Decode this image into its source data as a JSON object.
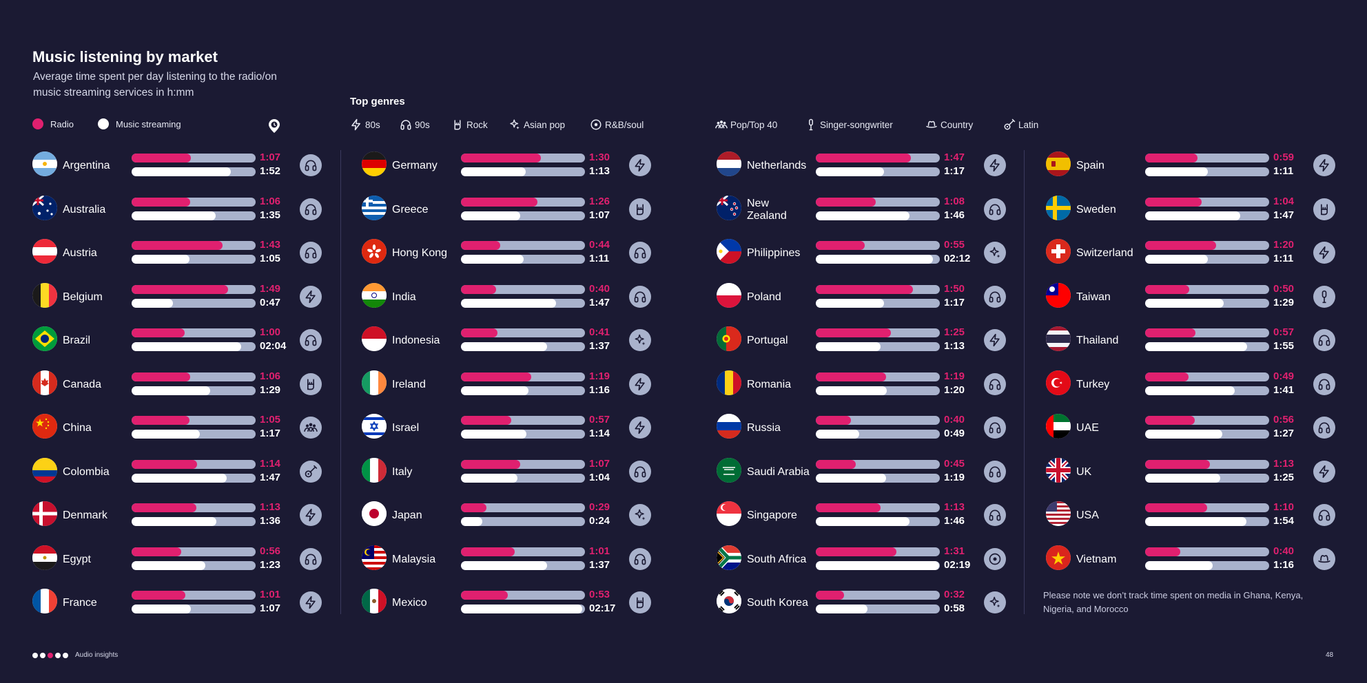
{
  "header": {
    "title": "Music listening by market",
    "subtitle": "Average time spent per day listening to the radio/on music streaming services in h:mm"
  },
  "legend": {
    "radio": "Radio",
    "streaming": "Music streaming"
  },
  "top_genres": {
    "title": "Top genres",
    "items": [
      {
        "key": "80s",
        "label": "80s",
        "icon": "bolt-icon"
      },
      {
        "key": "90s",
        "label": "90s",
        "icon": "headphones-icon"
      },
      {
        "key": "rock",
        "label": "Rock",
        "icon": "rock-hand-icon"
      },
      {
        "key": "asian",
        "label": "Asian pop",
        "icon": "sparkle-icon"
      },
      {
        "key": "rnb",
        "label": "R&B/soul",
        "icon": "record-icon"
      },
      {
        "key": "pop",
        "label": "Pop/Top 40",
        "icon": "crowd-icon"
      },
      {
        "key": "singer",
        "label": "Singer-songwriter",
        "icon": "microphone-icon"
      },
      {
        "key": "country",
        "label": "Country",
        "icon": "cowboy-hat-icon"
      },
      {
        "key": "latin",
        "label": "Latin",
        "icon": "guitar-icon"
      }
    ]
  },
  "colors": {
    "background": "#1b1a33",
    "radio": "#e0206f",
    "streaming": "#ffffff",
    "track": "#a9b2cc",
    "icon_bg": "#a9b2cc",
    "icon_fg": "#1b1a33"
  },
  "chart_data": {
    "type": "bar",
    "title": "Music listening by market",
    "unit": "h:mm",
    "scale_max_minutes": 140,
    "series": [
      {
        "name": "Radio"
      },
      {
        "name": "Music streaming"
      }
    ],
    "markets": [
      {
        "name": "Argentina",
        "radio": "1:07",
        "streaming": "1:52",
        "genre": "90s"
      },
      {
        "name": "Australia",
        "radio": "1:06",
        "streaming": "1:35",
        "genre": "90s"
      },
      {
        "name": "Austria",
        "radio": "1:43",
        "streaming": "1:05",
        "genre": "90s"
      },
      {
        "name": "Belgium",
        "radio": "1:49",
        "streaming": "0:47",
        "genre": "80s"
      },
      {
        "name": "Brazil",
        "radio": "1:00",
        "streaming": "02:04",
        "genre": "90s"
      },
      {
        "name": "Canada",
        "radio": "1:06",
        "streaming": "1:29",
        "genre": "rock"
      },
      {
        "name": "China",
        "radio": "1:05",
        "streaming": "1:17",
        "genre": "pop"
      },
      {
        "name": "Colombia",
        "radio": "1:14",
        "streaming": "1:47",
        "genre": "latin"
      },
      {
        "name": "Denmark",
        "radio": "1:13",
        "streaming": "1:36",
        "genre": "80s"
      },
      {
        "name": "Egypt",
        "radio": "0:56",
        "streaming": "1:23",
        "genre": "90s"
      },
      {
        "name": "France",
        "radio": "1:01",
        "streaming": "1:07",
        "genre": "80s"
      },
      {
        "name": "Germany",
        "radio": "1:30",
        "streaming": "1:13",
        "genre": "80s"
      },
      {
        "name": "Greece",
        "radio": "1:26",
        "streaming": "1:07",
        "genre": "rock"
      },
      {
        "name": "Hong Kong",
        "radio": "0:44",
        "streaming": "1:11",
        "genre": "90s"
      },
      {
        "name": "India",
        "radio": "0:40",
        "streaming": "1:47",
        "genre": "90s"
      },
      {
        "name": "Indonesia",
        "radio": "0:41",
        "streaming": "1:37",
        "genre": "asian"
      },
      {
        "name": "Ireland",
        "radio": "1:19",
        "streaming": "1:16",
        "genre": "80s"
      },
      {
        "name": "Israel",
        "radio": "0:57",
        "streaming": "1:14",
        "genre": "80s"
      },
      {
        "name": "Italy",
        "radio": "1:07",
        "streaming": "1:04",
        "genre": "90s"
      },
      {
        "name": "Japan",
        "radio": "0:29",
        "streaming": "0:24",
        "genre": "asian"
      },
      {
        "name": "Malaysia",
        "radio": "1:01",
        "streaming": "1:37",
        "genre": "90s"
      },
      {
        "name": "Mexico",
        "radio": "0:53",
        "streaming": "02:17",
        "genre": "rock"
      },
      {
        "name": "Netherlands",
        "radio": "1:47",
        "streaming": "1:17",
        "genre": "80s"
      },
      {
        "name": "New Zealand",
        "radio": "1:08",
        "streaming": "1:46",
        "genre": "90s"
      },
      {
        "name": "Philippines",
        "radio": "0:55",
        "streaming": "02:12",
        "genre": "asian"
      },
      {
        "name": "Poland",
        "radio": "1:50",
        "streaming": "1:17",
        "genre": "90s"
      },
      {
        "name": "Portugal",
        "radio": "1:25",
        "streaming": "1:13",
        "genre": "80s"
      },
      {
        "name": "Romania",
        "radio": "1:19",
        "streaming": "1:20",
        "genre": "90s"
      },
      {
        "name": "Russia",
        "radio": "0:40",
        "streaming": "0:49",
        "genre": "90s"
      },
      {
        "name": "Saudi Arabia",
        "radio": "0:45",
        "streaming": "1:19",
        "genre": "90s"
      },
      {
        "name": "Singapore",
        "radio": "1:13",
        "streaming": "1:46",
        "genre": "90s"
      },
      {
        "name": "South Africa",
        "radio": "1:31",
        "streaming": "02:19",
        "genre": "rnb"
      },
      {
        "name": "South Korea",
        "radio": "0:32",
        "streaming": "0:58",
        "genre": "asian"
      },
      {
        "name": "Spain",
        "radio": "0:59",
        "streaming": "1:11",
        "genre": "80s"
      },
      {
        "name": "Sweden",
        "radio": "1:04",
        "streaming": "1:47",
        "genre": "rock"
      },
      {
        "name": "Switzerland",
        "radio": "1:20",
        "streaming": "1:11",
        "genre": "80s"
      },
      {
        "name": "Taiwan",
        "radio": "0:50",
        "streaming": "1:29",
        "genre": "singer"
      },
      {
        "name": "Thailand",
        "radio": "0:57",
        "streaming": "1:55",
        "genre": "90s"
      },
      {
        "name": "Turkey",
        "radio": "0:49",
        "streaming": "1:41",
        "genre": "90s"
      },
      {
        "name": "UAE",
        "radio": "0:56",
        "streaming": "1:27",
        "genre": "90s"
      },
      {
        "name": "UK",
        "radio": "1:13",
        "streaming": "1:25",
        "genre": "80s"
      },
      {
        "name": "USA",
        "radio": "1:10",
        "streaming": "1:54",
        "genre": "90s"
      },
      {
        "name": "Vietnam",
        "radio": "0:40",
        "streaming": "1:16",
        "genre": "country"
      }
    ]
  },
  "note": "Please note we don’t track time spent on media in Ghana, Kenya, Nigeria, and Morocco",
  "footer": {
    "label": "Audio insights",
    "page_number": "48"
  }
}
